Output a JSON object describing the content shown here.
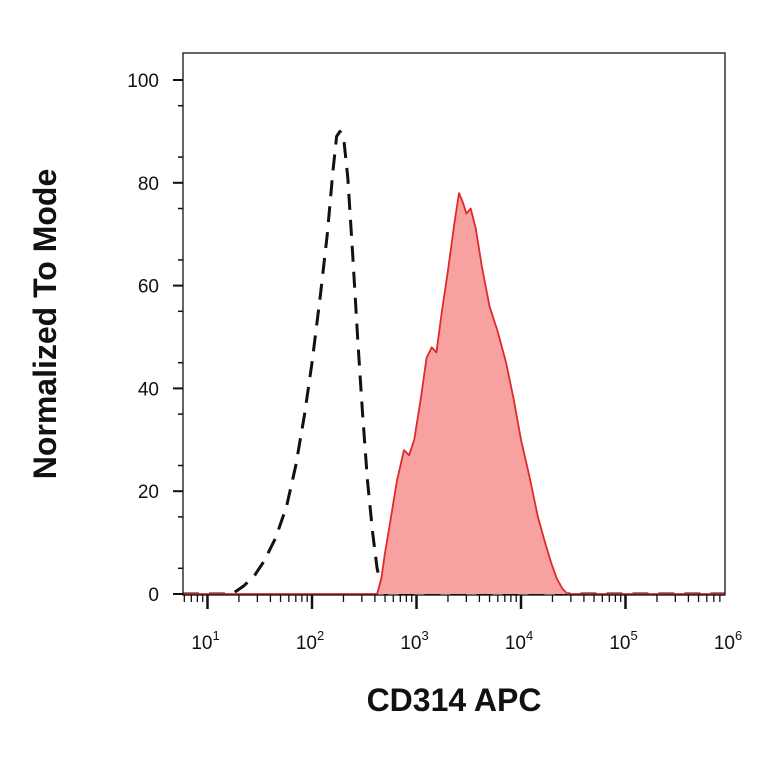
{
  "chart_data": {
    "type": "area",
    "title": "",
    "xlabel": "CD314 APC",
    "ylabel": "Normalized To Mode",
    "x_scale": "log",
    "xlim": [
      10,
      1000000
    ],
    "ylim": [
      0,
      100
    ],
    "grid": false,
    "legend": "none",
    "x_ticks": [
      {
        "base": "10",
        "exp": "1"
      },
      {
        "base": "10",
        "exp": "2"
      },
      {
        "base": "10",
        "exp": "3"
      },
      {
        "base": "10",
        "exp": "4"
      },
      {
        "base": "10",
        "exp": "5"
      },
      {
        "base": "10",
        "exp": "6"
      }
    ],
    "y_ticks": [
      "0",
      "20",
      "40",
      "60",
      "80",
      "100"
    ],
    "series": [
      {
        "style": "dashed",
        "color": "#111111",
        "fill": "none",
        "points": [
          [
            5,
            0
          ],
          [
            15,
            0
          ],
          [
            18,
            0.3
          ],
          [
            22,
            1.5
          ],
          [
            28,
            3.5
          ],
          [
            35,
            6.5
          ],
          [
            45,
            11
          ],
          [
            57,
            17
          ],
          [
            70,
            25
          ],
          [
            85,
            35
          ],
          [
            100,
            45
          ],
          [
            120,
            58
          ],
          [
            140,
            70
          ],
          [
            158,
            82
          ],
          [
            172,
            89
          ],
          [
            185,
            90
          ],
          [
            200,
            89
          ],
          [
            220,
            81
          ],
          [
            245,
            66
          ],
          [
            275,
            49
          ],
          [
            305,
            35
          ],
          [
            340,
            22
          ],
          [
            380,
            12
          ],
          [
            420,
            5
          ],
          [
            460,
            1.5
          ],
          [
            500,
            0
          ],
          [
            1000000,
            0
          ]
        ]
      },
      {
        "style": "solid",
        "color": "#e02a2a",
        "fill": "#f7a1a1",
        "points": [
          [
            5,
            0
          ],
          [
            420,
            0
          ],
          [
            460,
            3
          ],
          [
            500,
            8
          ],
          [
            560,
            14
          ],
          [
            650,
            22
          ],
          [
            760,
            28
          ],
          [
            850,
            27
          ],
          [
            950,
            30
          ],
          [
            1100,
            38
          ],
          [
            1250,
            46
          ],
          [
            1400,
            48
          ],
          [
            1550,
            47
          ],
          [
            1750,
            55
          ],
          [
            2000,
            63
          ],
          [
            2300,
            72
          ],
          [
            2550,
            78
          ],
          [
            2800,
            76
          ],
          [
            3000,
            74
          ],
          [
            3300,
            75
          ],
          [
            3700,
            71
          ],
          [
            4200,
            64
          ],
          [
            5000,
            56
          ],
          [
            6000,
            51
          ],
          [
            7200,
            45
          ],
          [
            8500,
            38
          ],
          [
            10000,
            30
          ],
          [
            12000,
            23
          ],
          [
            14500,
            15
          ],
          [
            17000,
            10
          ],
          [
            19500,
            6
          ],
          [
            22000,
            3
          ],
          [
            25000,
            1
          ],
          [
            28000,
            0
          ],
          [
            1000000,
            0
          ]
        ]
      }
    ]
  }
}
